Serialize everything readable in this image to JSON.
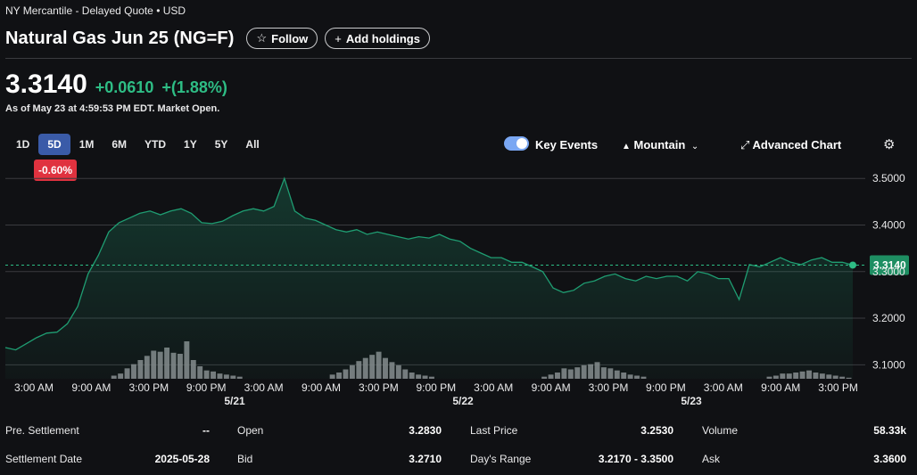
{
  "header": {
    "exchange": "NY Mercantile - Delayed Quote • USD",
    "title": "Natural Gas Jun 25 (NG=F)",
    "follow_label": "Follow",
    "add_holdings_label": "Add holdings"
  },
  "quote": {
    "price": "3.3140",
    "change": "+0.0610",
    "change_pct": "+(1.88%)",
    "as_of": "As of May 23 at 4:59:53 PM EDT. Market Open."
  },
  "range_tabs": [
    "1D",
    "5D",
    "1M",
    "6M",
    "YTD",
    "1Y",
    "5Y",
    "All"
  ],
  "active_range": "5D",
  "period_change": "-0.60%",
  "controls": {
    "key_events": "Key Events",
    "chart_type": "Mountain",
    "advanced_chart": "Advanced Chart"
  },
  "colors": {
    "up": "#2ebd85",
    "down": "#e0323f",
    "accent": "#3a5ba8",
    "line": "#1f9d72"
  },
  "chart_data": {
    "type": "area",
    "ylim": [
      3.07,
      3.51
    ],
    "y_ticks": [
      "3.5000",
      "3.4000",
      "3.3000",
      "3.2000",
      "3.1000"
    ],
    "x_tick_labels": [
      "3:00 AM",
      "9:00 AM",
      "3:00 PM",
      "9:00 PM",
      "3:00 AM",
      "9:00 AM",
      "3:00 PM",
      "9:00 PM",
      "3:00 AM",
      "9:00 AM",
      "3:00 PM",
      "9:00 PM",
      "3:00 AM",
      "9:00 AM",
      "3:00 PM"
    ],
    "day_labels": [
      "5/21",
      "5/22",
      "5/23"
    ],
    "current_price_label": "3.3140",
    "current_price": 3.314,
    "price_series": [
      3.137,
      3.132,
      3.145,
      3.158,
      3.168,
      3.17,
      3.188,
      3.225,
      3.295,
      3.335,
      3.385,
      3.405,
      3.415,
      3.425,
      3.43,
      3.422,
      3.43,
      3.435,
      3.425,
      3.405,
      3.403,
      3.408,
      3.42,
      3.43,
      3.435,
      3.43,
      3.44,
      3.5,
      3.43,
      3.415,
      3.41,
      3.4,
      3.39,
      3.385,
      3.39,
      3.38,
      3.385,
      3.38,
      3.375,
      3.37,
      3.375,
      3.372,
      3.38,
      3.37,
      3.365,
      3.35,
      3.34,
      3.33,
      3.33,
      3.32,
      3.32,
      3.31,
      3.3,
      3.265,
      3.255,
      3.26,
      3.275,
      3.28,
      3.29,
      3.295,
      3.285,
      3.28,
      3.29,
      3.285,
      3.29,
      3.29,
      3.28,
      3.3,
      3.295,
      3.285,
      3.285,
      3.24,
      3.315,
      3.31,
      3.32,
      3.33,
      3.32,
      3.315,
      3.325,
      3.33,
      3.32,
      3.32,
      3.314
    ],
    "volume_series": [
      0,
      0,
      0,
      0,
      0,
      0,
      0,
      0,
      0,
      0,
      0,
      0,
      0,
      0,
      0,
      0,
      3,
      5,
      10,
      14,
      18,
      22,
      27,
      26,
      30,
      25,
      24,
      36,
      18,
      12,
      8,
      7,
      5,
      4,
      3,
      2,
      0,
      0,
      0,
      0,
      0,
      0,
      0,
      0,
      0,
      0,
      0,
      0,
      0,
      4,
      6,
      9,
      13,
      17,
      20,
      23,
      26,
      20,
      16,
      13,
      9,
      6,
      4,
      3,
      2,
      0,
      0,
      0,
      0,
      0,
      0,
      0,
      0,
      0,
      0,
      0,
      0,
      0,
      0,
      0,
      0,
      2,
      4,
      6,
      10,
      9,
      11,
      13,
      14,
      16,
      11,
      10,
      8,
      6,
      4,
      3,
      2,
      0,
      0,
      0,
      0,
      0,
      0,
      0,
      0,
      0,
      0,
      0,
      0,
      0,
      0,
      0,
      0,
      0,
      0,
      2,
      3,
      5,
      5,
      6,
      7,
      8,
      6,
      5,
      4,
      3,
      2,
      1
    ]
  },
  "stats": [
    {
      "label": "Pre. Settlement",
      "value": "--"
    },
    {
      "label": "Open",
      "value": "3.2830"
    },
    {
      "label": "Last Price",
      "value": "3.2530"
    },
    {
      "label": "Volume",
      "value": "58.33k"
    },
    {
      "label": "Settlement Date",
      "value": "2025-05-28"
    },
    {
      "label": "Bid",
      "value": "3.2710"
    },
    {
      "label": "Day's Range",
      "value": "3.2170 - 3.3500"
    },
    {
      "label": "Ask",
      "value": "3.3600"
    }
  ]
}
